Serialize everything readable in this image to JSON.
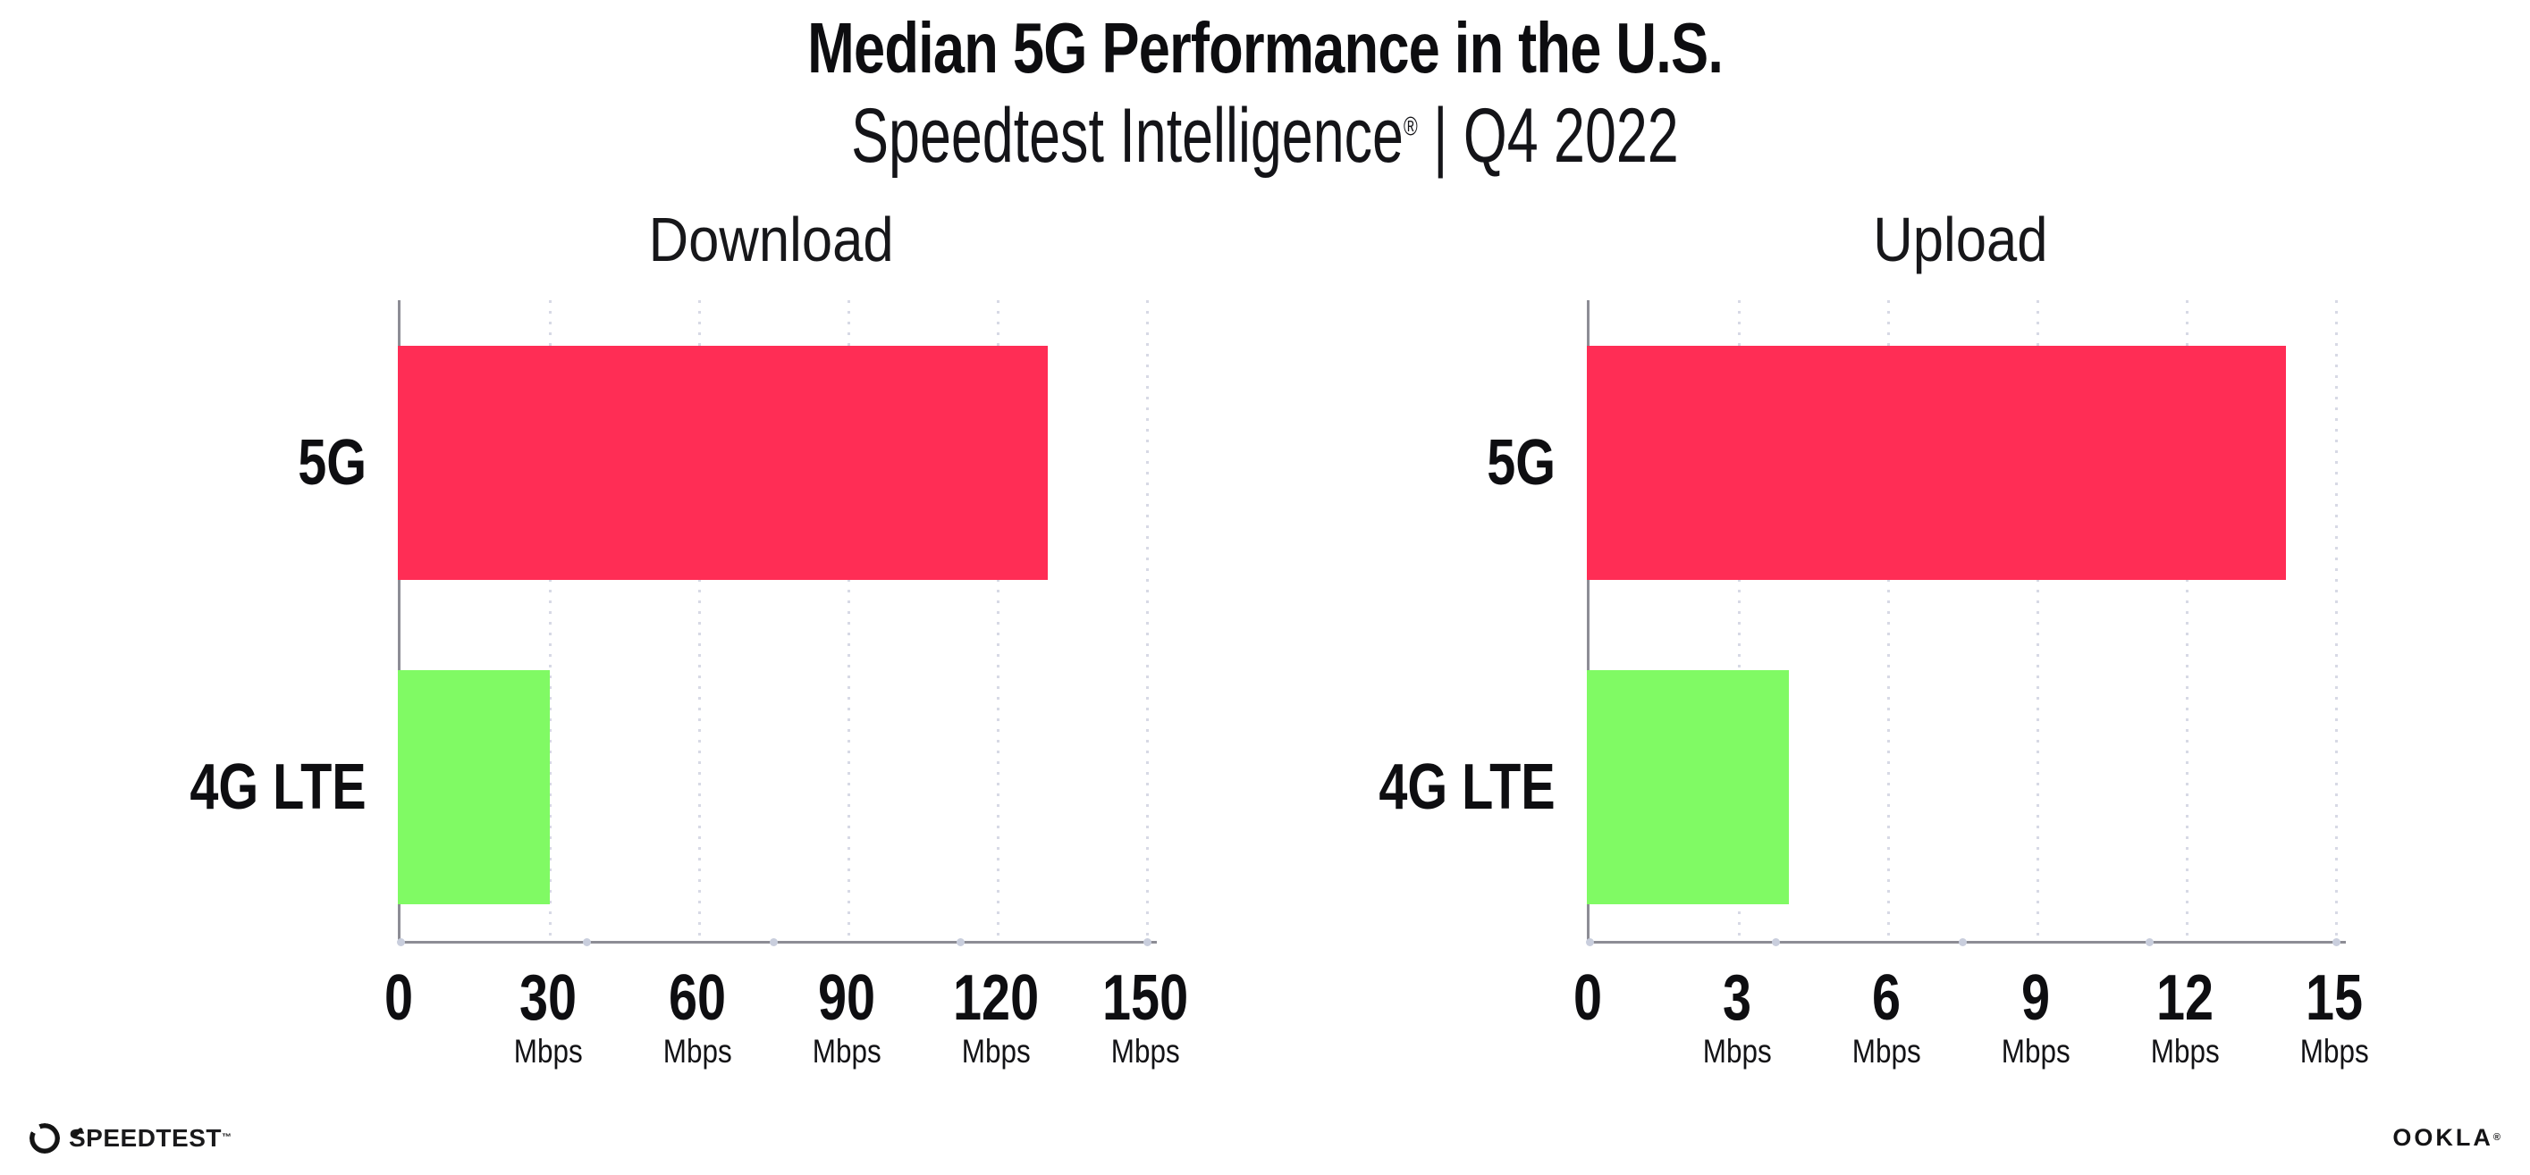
{
  "header": {
    "title": "Median 5G Performance in the U.S.",
    "subtitle_brand": "Speedtest Intelligence",
    "subtitle_reg": "®",
    "subtitle_rest": " | Q4 2022"
  },
  "chart_data": [
    {
      "type": "bar",
      "orientation": "horizontal",
      "title": "Download",
      "categories": [
        "5G",
        "4G LTE"
      ],
      "values": [
        130,
        30
      ],
      "unit": "Mbps",
      "xticks": [
        0,
        30,
        60,
        90,
        120,
        150
      ],
      "xlim": [
        0,
        150
      ],
      "grid": "dotted-vertical",
      "legend": "none",
      "bar_colors": [
        "#FF2D55",
        "#80FA64"
      ]
    },
    {
      "type": "bar",
      "orientation": "horizontal",
      "title": "Upload",
      "categories": [
        "5G",
        "4G LTE"
      ],
      "values": [
        14,
        4
      ],
      "unit": "Mbps",
      "xticks": [
        0,
        3,
        6,
        9,
        12,
        15
      ],
      "xlim": [
        0,
        15
      ],
      "grid": "dotted-vertical",
      "legend": "none",
      "bar_colors": [
        "#FF2D55",
        "#80FA64"
      ]
    }
  ],
  "footer": {
    "speedtest_label": "SPEEDTEST",
    "speedtest_tm": "™",
    "ookla_label": "OOKLA",
    "ookla_reg": "®"
  },
  "colors": {
    "bar_5g": "#FF2D55",
    "bar_4g": "#80FA64",
    "axis": "#8D8D95",
    "gridline": "#D7D9E5",
    "axis_dot": "#C9CEDD",
    "background": "#FFFFFF",
    "text": "#0E0E11"
  }
}
